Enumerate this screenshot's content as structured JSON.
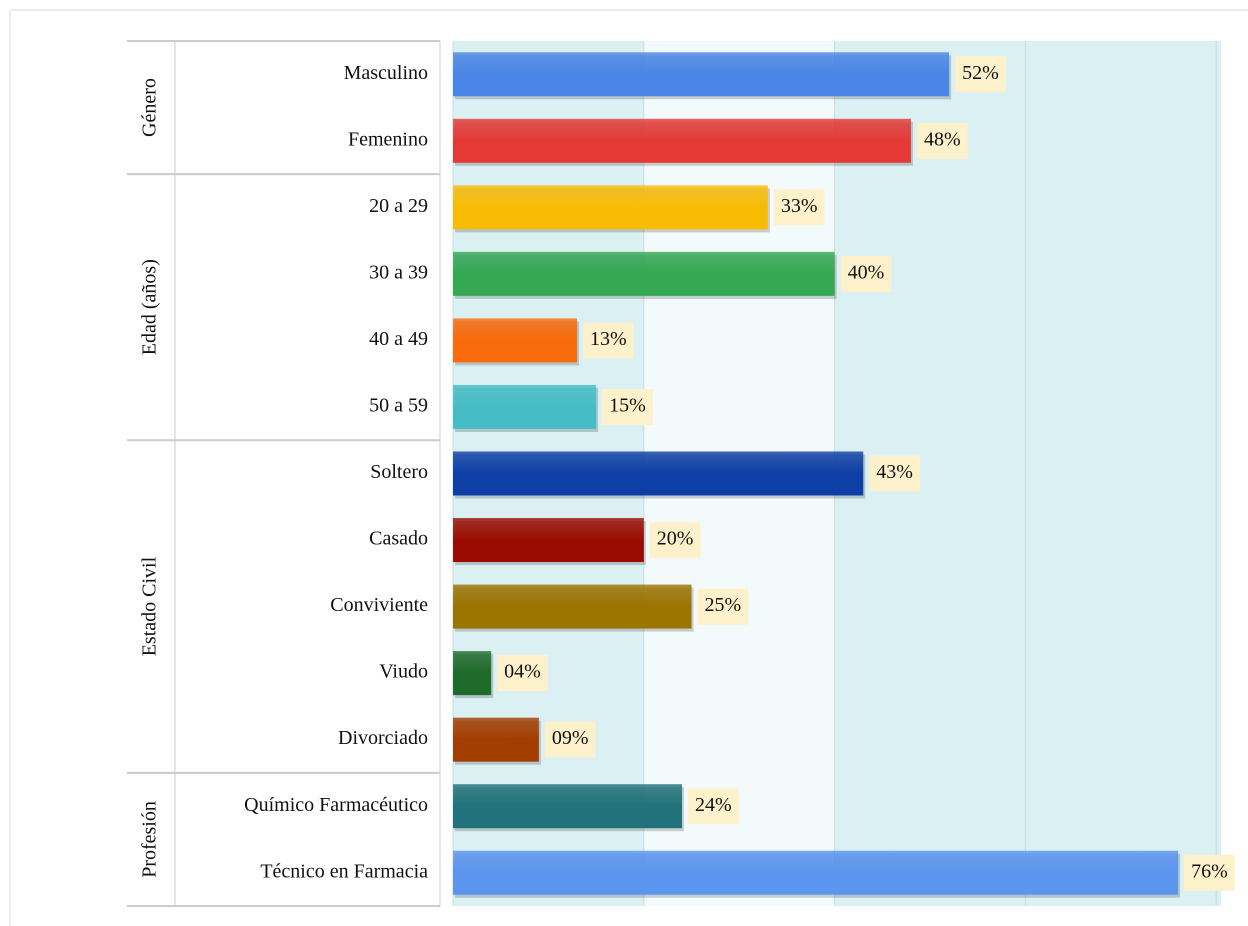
{
  "chart_data": {
    "type": "bar",
    "orientation": "horizontal",
    "groups": [
      {
        "label": "Género",
        "categories": [
          "Masculino",
          "Femenino"
        ]
      },
      {
        "label": "Edad (años)",
        "categories": [
          "20 a 29",
          "30 a 39",
          "40 a 49",
          "50 a 59"
        ]
      },
      {
        "label": "Estado Civil",
        "categories": [
          "Soltero",
          "Casado",
          "Conviviente",
          "Viudo",
          "Divorciado"
        ]
      },
      {
        "label": "Profesión",
        "categories": [
          "Químico Farmacéutico",
          "Técnico en Farmacia"
        ]
      }
    ],
    "values": [
      52,
      48,
      33,
      40,
      13,
      15,
      43,
      20,
      25,
      4,
      9,
      24,
      76
    ],
    "value_labels": [
      "52%",
      "48%",
      "33%",
      "40%",
      "13%",
      "15%",
      "43%",
      "20%",
      "25%",
      "04%",
      "09%",
      "24%",
      "76%"
    ],
    "colors": [
      "#4a86e8",
      "#e53935",
      "#f9bc05",
      "#34a853",
      "#f96a0a",
      "#46bdc6",
      "#0d3fa6",
      "#9b0c00",
      "#9c7400",
      "#1e6b2a",
      "#a33d00",
      "#21727a",
      "#5b95f0"
    ],
    "xlim": [
      0,
      80.5
    ],
    "xticks": [
      0,
      20,
      40,
      60,
      80
    ],
    "grid": true
  }
}
